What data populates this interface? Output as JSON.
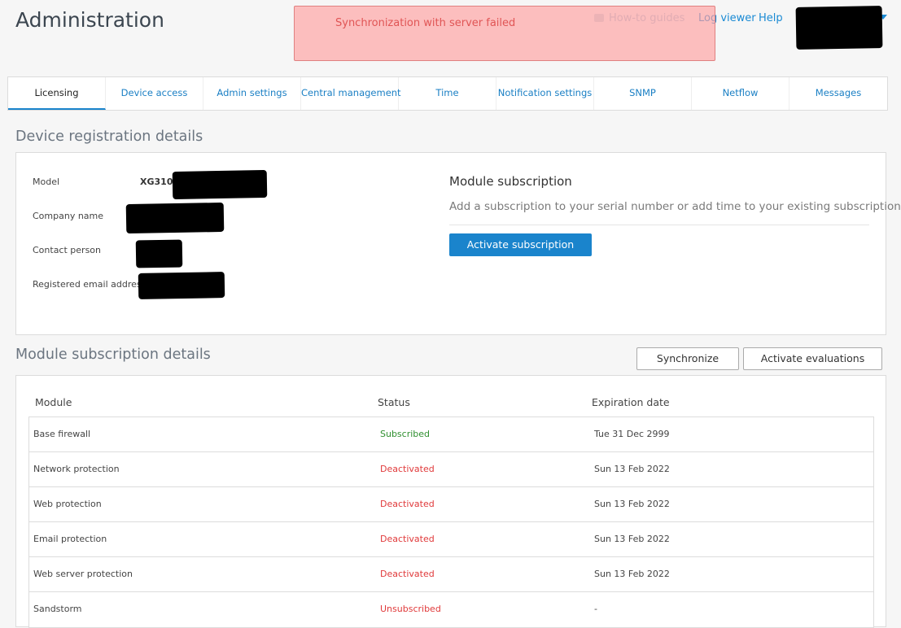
{
  "header": {
    "title": "Administration",
    "alert": "Synchronization with server failed",
    "links": [
      "How-to guides",
      "Log viewer",
      "Help"
    ]
  },
  "tabs": [
    "Licensing",
    "Device access",
    "Admin settings",
    "Central management",
    "Time",
    "Notification settings",
    "SNMP",
    "Netflow",
    "Messages"
  ],
  "registration": {
    "title": "Device registration details",
    "fields": [
      {
        "label": "Model",
        "value": "XG310 ("
      },
      {
        "label": "Company name"
      },
      {
        "label": "Contact person"
      },
      {
        "label": "Registered email address"
      }
    ]
  },
  "subscription": {
    "title": "Module subscription",
    "description": "Add a subscription to your serial number or add time to your existing subscription.",
    "button": "Activate subscription"
  },
  "modules": {
    "title": "Module subscription details",
    "buttons": [
      "Synchronize",
      "Activate evaluations"
    ],
    "columns": [
      "Module",
      "Status",
      "Expiration date"
    ],
    "rows": [
      [
        "Base firewall",
        "Subscribed",
        "Tue 31 Dec 2999"
      ],
      [
        "Network protection",
        "Deactivated",
        "Sun 13 Feb 2022"
      ],
      [
        "Web protection",
        "Deactivated",
        "Sun 13 Feb 2022"
      ],
      [
        "Email protection",
        "Deactivated",
        "Sun 13 Feb 2022"
      ],
      [
        "Web server protection",
        "Deactivated",
        "Sun 13 Feb 2022"
      ],
      [
        "Sandstorm",
        "Unsubscribed",
        "-"
      ]
    ],
    "status_colors": [
      "#2f8f2f",
      "#e0393a",
      "#e0393a",
      "#e0393a",
      "#e0393a",
      "#e0393a"
    ]
  }
}
